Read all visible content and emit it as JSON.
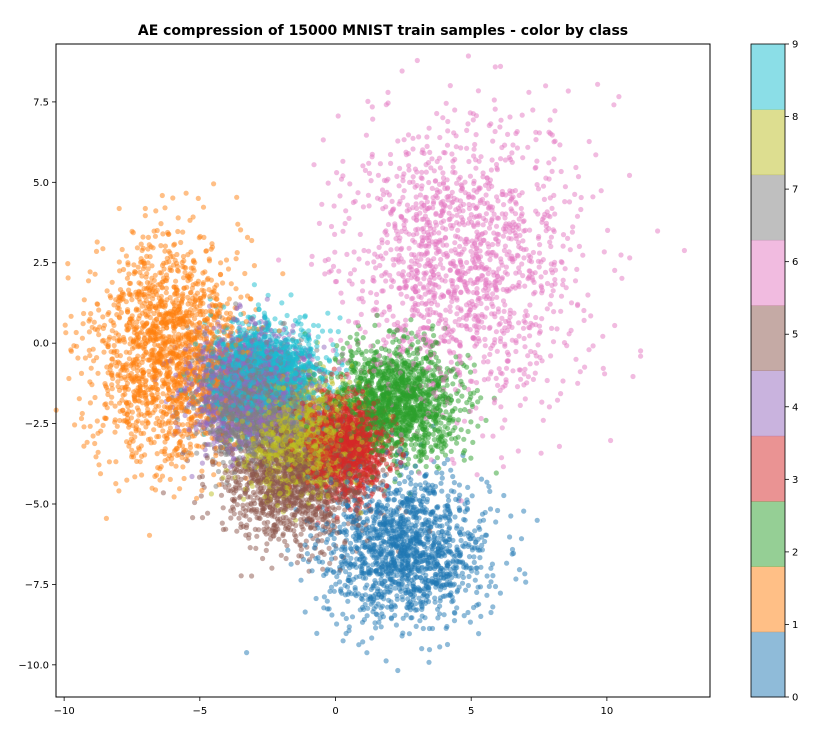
{
  "chart_data": {
    "type": "scatter",
    "title": "AE compression of 15000 MNIST train samples - color by class",
    "xlabel": "",
    "ylabel": "",
    "xlim": [
      -10.3,
      13.8
    ],
    "ylim": [
      -11.0,
      9.3
    ],
    "x_ticks": [
      -10,
      -5,
      0,
      5,
      10
    ],
    "y_ticks": [
      -10.0,
      -7.5,
      -5.0,
      -2.5,
      0.0,
      2.5,
      5.0,
      7.5
    ],
    "grid": false,
    "colorbar": {
      "min": 0,
      "max": 9,
      "ticks": [
        0,
        1,
        2,
        3,
        4,
        5,
        6,
        7,
        8,
        9
      ],
      "colors": [
        "#1f77b4",
        "#ff7f0e",
        "#2ca02c",
        "#d62728",
        "#9467bd",
        "#8c564b",
        "#e377c2",
        "#7f7f7f",
        "#bcbd22",
        "#17becf"
      ]
    },
    "clusters": [
      {
        "class": 0,
        "center": [
          2.6,
          -6.4
        ],
        "spread": [
          1.5,
          1.15
        ],
        "count": 1500
      },
      {
        "class": 1,
        "center": [
          -6.2,
          -0.3
        ],
        "spread": [
          1.35,
          1.75
        ],
        "count": 1700
      },
      {
        "class": 2,
        "center": [
          2.3,
          -1.8
        ],
        "spread": [
          1.15,
          0.85
        ],
        "count": 1500
      },
      {
        "class": 3,
        "center": [
          0.3,
          -3.2
        ],
        "spread": [
          0.75,
          0.75
        ],
        "count": 1500
      },
      {
        "class": 4,
        "center": [
          -3.3,
          -1.4
        ],
        "spread": [
          1.1,
          0.85
        ],
        "count": 1450
      },
      {
        "class": 5,
        "center": [
          -1.6,
          -4.3
        ],
        "spread": [
          1.35,
          1.0
        ],
        "count": 1350
      },
      {
        "class": 6,
        "center": [
          4.6,
          2.4
        ],
        "spread": [
          2.2,
          2.3
        ],
        "count": 1500
      },
      {
        "class": 7,
        "center": [
          -3.0,
          -1.9
        ],
        "spread": [
          1.0,
          0.8
        ],
        "count": 1500
      },
      {
        "class": 8,
        "center": [
          -1.2,
          -3.0
        ],
        "spread": [
          1.0,
          0.8
        ],
        "count": 1450
      },
      {
        "class": 9,
        "center": [
          -2.7,
          -0.9
        ],
        "spread": [
          1.0,
          0.75
        ],
        "count": 1550
      }
    ],
    "total_samples": 15000
  }
}
